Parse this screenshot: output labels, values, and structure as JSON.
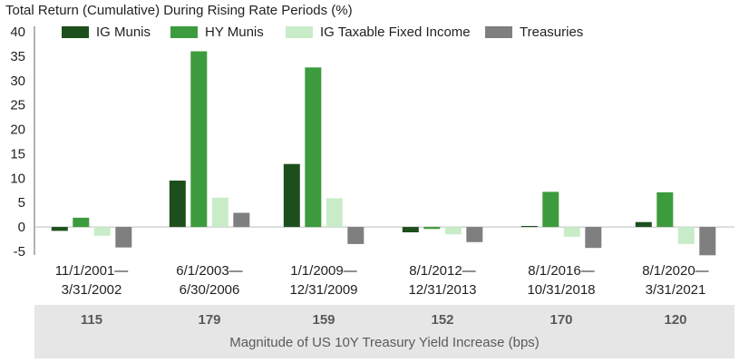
{
  "chart_data": {
    "type": "bar",
    "title": "Total Return (Cumulative) During Rising Rate Periods (%)",
    "categories": [
      [
        "11/1/2001—",
        "3/31/2002"
      ],
      [
        "6/1/2003—",
        "6/30/2006"
      ],
      [
        "1/1/2009—",
        "12/31/2009"
      ],
      [
        "8/1/2012—",
        "12/31/2013"
      ],
      [
        "8/1/2016—",
        "10/31/2018"
      ],
      [
        "8/1/2020—",
        "3/31/2021"
      ]
    ],
    "series": [
      {
        "name": "IG Munis",
        "color": "#1d4f1d",
        "values": [
          -0.8,
          9.5,
          12.9,
          -1.1,
          0.2,
          1.0
        ]
      },
      {
        "name": "HY Munis",
        "color": "#3c9b3c",
        "values": [
          1.9,
          36.0,
          32.7,
          -0.4,
          7.2,
          7.1
        ]
      },
      {
        "name": "IG Taxable Fixed Income",
        "color": "#c8ecc8",
        "values": [
          -1.8,
          6.0,
          5.9,
          -1.5,
          -2.0,
          -3.5
        ]
      },
      {
        "name": "Treasuries",
        "color": "#7f7f7f",
        "values": [
          -4.2,
          2.9,
          -3.5,
          -3.1,
          -4.3,
          -5.8
        ]
      }
    ],
    "ylim": [
      -5,
      40
    ],
    "yticks": [
      40,
      35,
      30,
      25,
      20,
      15,
      10,
      5,
      0,
      -5
    ],
    "legend_position": "top",
    "grid": false,
    "bps_increase": {
      "values": [
        "115",
        "179",
        "159",
        "152",
        "170",
        "120"
      ],
      "label": "Magnitude of US 10Y Treasury Yield Increase (bps)"
    }
  }
}
